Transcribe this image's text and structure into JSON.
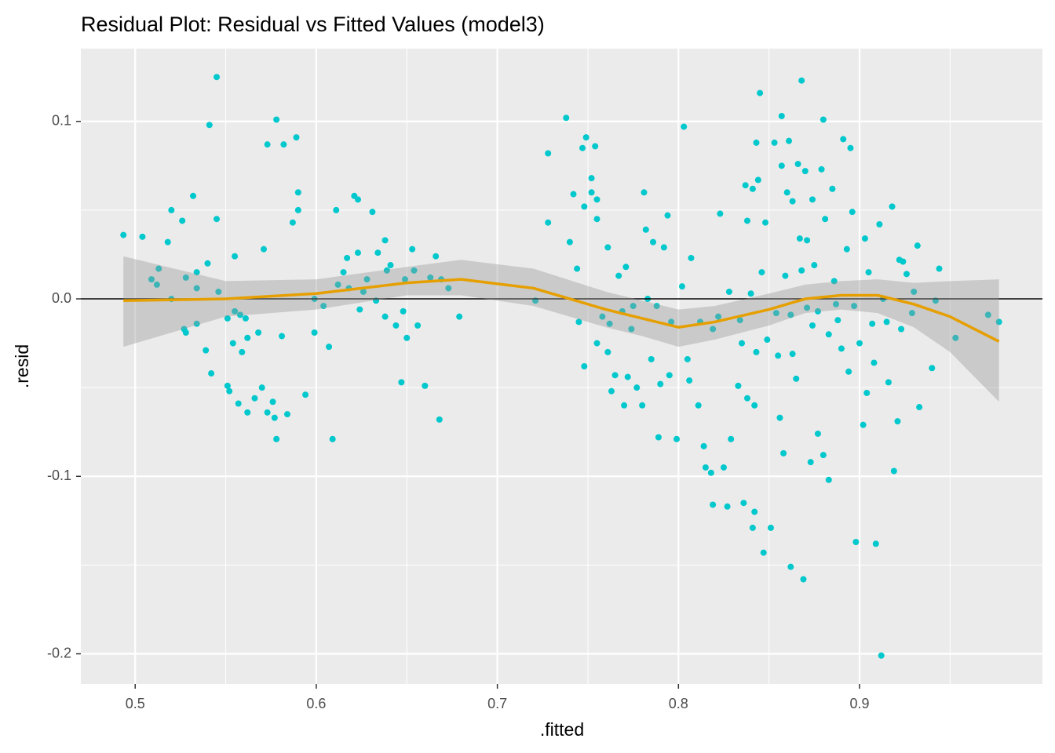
{
  "chart_data": {
    "type": "scatter",
    "title": "Residual Plot: Residual vs Fitted Values (model3)",
    "x_label": ".fitted",
    "y_label": ".resid",
    "xlim": [
      0.47,
      1.001
    ],
    "ylim": [
      -0.217,
      0.141
    ],
    "xticks": [
      0.5,
      0.6,
      0.7,
      0.8,
      0.9
    ],
    "yticks": [
      0.1,
      {
        "value": 0,
        "label": "0.0"
      },
      -0.1,
      -0.2
    ],
    "minor_xticks": [
      0.55,
      0.65,
      0.75,
      0.85,
      0.95
    ],
    "minor_yticks": [
      0.05,
      -0.05,
      -0.15
    ],
    "grid": true,
    "panel_color": "#EBEBEB",
    "hline": {
      "value": 0,
      "color": "#000000"
    },
    "series": [
      {
        "color": "#00C8CC",
        "x": [
          0.4935,
          0.504,
          0.509,
          0.512,
          0.513,
          0.518,
          0.52,
          0.52,
          0.526,
          0.528,
          0.527,
          0.528,
          0.532,
          0.534,
          0.534,
          0.534,
          0.539,
          0.54,
          0.541,
          0.542,
          0.545,
          0.545,
          0.546,
          0.551,
          0.551,
          0.552,
          0.554,
          0.555,
          0.555,
          0.557,
          0.558,
          0.559,
          0.561,
          0.562,
          0.562,
          0.566,
          0.568,
          0.57,
          0.571,
          0.573,
          0.573,
          0.576,
          0.577,
          0.578,
          0.578,
          0.581,
          0.582,
          0.584,
          0.587,
          0.589,
          0.59,
          0.59,
          0.594,
          0.599,
          0.599,
          0.604,
          0.607,
          0.609,
          0.611,
          0.612,
          0.615,
          0.617,
          0.618,
          0.621,
          0.623,
          0.623,
          0.624,
          0.626,
          0.628,
          0.631,
          0.633,
          0.634,
          0.638,
          0.638,
          0.639,
          0.641,
          0.644,
          0.647,
          0.648,
          0.649,
          0.65,
          0.653,
          0.654,
          0.656,
          0.66,
          0.663,
          0.666,
          0.668,
          0.669,
          0.673,
          0.679,
          0.721,
          0.728,
          0.728,
          0.738,
          0.74,
          0.742,
          0.744,
          0.745,
          0.747,
          0.749,
          0.748,
          0.748,
          0.752,
          0.752,
          0.754,
          0.755,
          0.755,
          0.755,
          0.758,
          0.761,
          0.761,
          0.762,
          0.763,
          0.765,
          0.767,
          0.769,
          0.77,
          0.771,
          0.772,
          0.774,
          0.775,
          0.777,
          0.78,
          0.781,
          0.782,
          0.783,
          0.785,
          0.786,
          0.788,
          0.789,
          0.79,
          0.792,
          0.794,
          0.795,
          0.796,
          0.799,
          0.802,
          0.803,
          0.805,
          0.807,
          0.806,
          0.811,
          0.812,
          0.814,
          0.815,
          0.818,
          0.819,
          0.819,
          0.822,
          0.823,
          0.825,
          0.827,
          0.829,
          0.828,
          0.833,
          0.834,
          0.835,
          0.836,
          0.837,
          0.838,
          0.838,
          0.84,
          0.841,
          0.841,
          0.842,
          0.842,
          0.843,
          0.843,
          0.844,
          0.845,
          0.846,
          0.847,
          0.848,
          0.849,
          0.851,
          0.853,
          0.854,
          0.855,
          0.856,
          0.857,
          0.857,
          0.858,
          0.859,
          0.86,
          0.861,
          0.862,
          0.862,
          0.863,
          0.863,
          0.865,
          0.866,
          0.867,
          0.868,
          0.868,
          0.869,
          0.87,
          0.871,
          0.871,
          0.873,
          0.874,
          0.874,
          0.875,
          0.877,
          0.877,
          0.879,
          0.88,
          0.88,
          0.881,
          0.883,
          0.883,
          0.885,
          0.886,
          0.887,
          0.888,
          0.89,
          0.891,
          0.893,
          0.894,
          0.895,
          0.896,
          0.897,
          0.898,
          0.9,
          0.902,
          0.903,
          0.904,
          0.905,
          0.907,
          0.908,
          0.909,
          0.911,
          0.912,
          0.913,
          0.915,
          0.916,
          0.918,
          0.919,
          0.921,
          0.922,
          0.923,
          0.924,
          0.926,
          0.929,
          0.93,
          0.932,
          0.933,
          0.94,
          0.942,
          0.944,
          0.953,
          0.971,
          0.977
        ],
        "values": [
          0.036,
          0.035,
          0.011,
          0.008,
          0.017,
          0.032,
          0.05,
          0.0,
          0.044,
          0.012,
          -0.017,
          -0.019,
          0.058,
          0.015,
          0.006,
          -0.014,
          -0.029,
          0.02,
          0.098,
          -0.042,
          0.125,
          0.045,
          0.004,
          -0.011,
          -0.049,
          -0.052,
          -0.025,
          0.024,
          -0.007,
          -0.059,
          -0.009,
          -0.03,
          -0.011,
          -0.022,
          -0.064,
          -0.056,
          -0.019,
          -0.05,
          0.028,
          0.087,
          -0.064,
          -0.058,
          -0.067,
          0.101,
          -0.079,
          -0.021,
          0.087,
          -0.065,
          0.043,
          0.091,
          0.06,
          0.05,
          -0.054,
          0.0,
          -0.019,
          -0.004,
          -0.027,
          -0.079,
          0.05,
          0.008,
          0.015,
          0.023,
          0.006,
          0.058,
          0.026,
          0.056,
          -0.006,
          0.004,
          0.011,
          0.049,
          -0.001,
          0.026,
          0.033,
          -0.01,
          0.016,
          0.019,
          -0.015,
          -0.047,
          -0.007,
          0.011,
          -0.022,
          0.028,
          0.016,
          -0.015,
          -0.049,
          0.012,
          0.024,
          -0.068,
          0.011,
          0.006,
          -0.01,
          -0.001,
          0.082,
          0.043,
          0.102,
          0.032,
          0.059,
          0.017,
          -0.013,
          0.085,
          0.091,
          0.052,
          -0.038,
          0.068,
          0.06,
          0.086,
          0.056,
          0.045,
          -0.025,
          -0.01,
          0.029,
          -0.03,
          -0.014,
          -0.052,
          -0.043,
          0.013,
          -0.007,
          -0.06,
          0.018,
          -0.044,
          -0.017,
          -0.004,
          -0.05,
          -0.06,
          0.06,
          0.039,
          0.0,
          -0.034,
          0.032,
          -0.004,
          -0.078,
          -0.048,
          0.029,
          0.047,
          -0.043,
          -0.013,
          -0.079,
          0.007,
          0.097,
          -0.034,
          0.023,
          -0.046,
          -0.06,
          -0.013,
          -0.083,
          -0.095,
          -0.098,
          -0.116,
          -0.017,
          -0.01,
          0.048,
          -0.095,
          -0.117,
          -0.079,
          0.004,
          -0.049,
          -0.012,
          -0.025,
          -0.115,
          0.064,
          0.044,
          -0.056,
          0.003,
          -0.129,
          0.062,
          -0.12,
          -0.06,
          0.088,
          -0.03,
          0.067,
          0.116,
          0.015,
          -0.143,
          0.043,
          -0.023,
          -0.129,
          0.088,
          -0.008,
          -0.032,
          -0.067,
          0.075,
          0.103,
          -0.087,
          0.013,
          0.06,
          0.089,
          -0.009,
          -0.151,
          0.055,
          -0.031,
          -0.045,
          0.076,
          0.034,
          0.123,
          0.016,
          -0.158,
          0.072,
          -0.005,
          0.033,
          -0.092,
          0.056,
          -0.015,
          0.019,
          -0.076,
          -0.007,
          0.073,
          -0.088,
          0.101,
          0.045,
          -0.02,
          -0.102,
          0.062,
          0.01,
          -0.003,
          -0.012,
          -0.028,
          0.09,
          0.028,
          -0.041,
          0.085,
          0.049,
          -0.004,
          -0.137,
          -0.025,
          -0.071,
          0.034,
          -0.053,
          0.015,
          -0.014,
          -0.036,
          -0.138,
          0.042,
          -0.201,
          0.0,
          -0.013,
          -0.047,
          0.052,
          -0.097,
          -0.069,
          0.022,
          -0.017,
          0.021,
          0.014,
          -0.008,
          0.004,
          0.03,
          -0.061,
          -0.039,
          -0.001,
          0.017,
          -0.022,
          -0.009,
          -0.013
        ]
      }
    ],
    "smooth": {
      "color": "#E69F00",
      "band_color": "#999999",
      "x": [
        0.4935,
        0.55,
        0.6,
        0.65,
        0.68,
        0.72,
        0.76,
        0.78,
        0.8,
        0.82,
        0.85,
        0.87,
        0.89,
        0.91,
        0.93,
        0.95,
        0.977
      ],
      "values": [
        -0.001,
        0.0,
        0.003,
        0.009,
        0.011,
        0.006,
        -0.006,
        -0.011,
        -0.016,
        -0.013,
        -0.006,
        0.0,
        0.002,
        0.002,
        -0.003,
        -0.01,
        -0.024
      ],
      "lower": [
        -0.027,
        -0.01,
        -0.006,
        0.002,
        0.002,
        -0.004,
        -0.016,
        -0.021,
        -0.027,
        -0.023,
        -0.015,
        -0.008,
        -0.006,
        -0.008,
        -0.016,
        -0.03,
        -0.058
      ],
      "upper": [
        0.024,
        0.01,
        0.011,
        0.018,
        0.022,
        0.017,
        0.004,
        -0.001,
        -0.006,
        -0.004,
        0.003,
        0.008,
        0.01,
        0.011,
        0.009,
        0.01,
        0.011
      ]
    }
  }
}
